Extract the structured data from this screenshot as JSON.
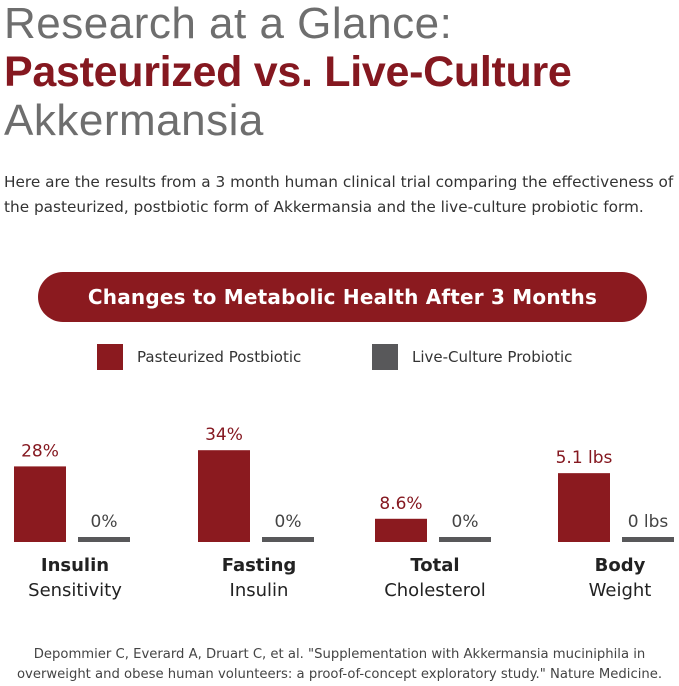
{
  "headline": {
    "line1": "Research at a Glance:",
    "line2": "Pasteurized vs. Live-Culture",
    "line3": "Akkermansia"
  },
  "intro": "Here are the results from a 3 month human clinical trial comparing the effectiveness of the pasteurized, postbiotic form of Akkermansia and the live-culture probiotic form.",
  "chart_title": "Changes to Metabolic Health After 3 Months",
  "legend": [
    {
      "label": "Pasteurized Postbiotic",
      "color": "#8b1a1f"
    },
    {
      "label": "Live-Culture Probiotic",
      "color": "#58585a"
    }
  ],
  "chart_data": {
    "type": "bar",
    "title": "Changes to Metabolic Health After 3 Months",
    "categories": [
      {
        "bold": "Insulin",
        "regular": "Sensitivity"
      },
      {
        "bold": "Fasting",
        "regular": "Insulin"
      },
      {
        "bold": "Total",
        "regular": "Cholesterol"
      },
      {
        "bold": "Body",
        "regular": "Weight"
      }
    ],
    "series": [
      {
        "name": "Pasteurized Postbiotic",
        "color": "#8b1a1f",
        "values": [
          28,
          34,
          8.6,
          5.1
        ],
        "labels": [
          "28%",
          "34%",
          "8.6%",
          "5.1 lbs"
        ]
      },
      {
        "name": "Live-Culture Probiotic",
        "color": "#58585a",
        "values": [
          0,
          0,
          0,
          0
        ],
        "labels": [
          "0%",
          "0%",
          "0%",
          "0 lbs"
        ]
      }
    ],
    "grid": false,
    "legend_position": "top"
  },
  "citation": {
    "line1": "Depommier C, Everard A, Druart C, et al. \"Supplementation with Akkermansia muciniphila in",
    "line2": "overweight and obese human volunteers: a proof-of-concept exploratory study.\" Nature Medicine."
  }
}
